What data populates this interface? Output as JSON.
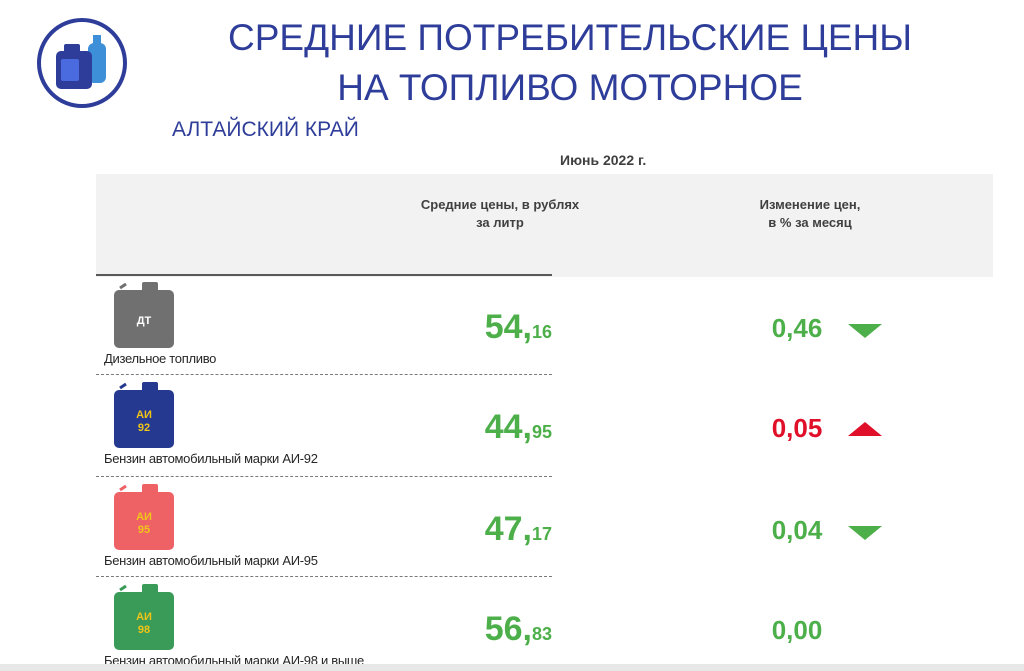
{
  "header": {
    "title_line1": "СРЕДНИЕ ПОТРЕБИТЕЛЬСКИЕ ЦЕНЫ",
    "title_line2": "НА ТОПЛИВО МОТОРНОЕ",
    "region": "АЛТАЙСКИЙ КРАЙ",
    "logo_icon": "fuel-canister-logo-icon"
  },
  "table": {
    "period": "Июнь 2022 г.",
    "col_price_l1": "Средние цены, в рублях",
    "col_price_l2": "за литр",
    "col_change_l1": "Изменение цен,",
    "col_change_l2": "в % за месяц",
    "rows": [
      {
        "can_label_1": "ДТ",
        "can_label_2": "",
        "name": "Дизельное топливо",
        "price_int": "54,",
        "price_dec": "16",
        "change": "0,46",
        "direction": "down",
        "change_color": "#4daf4a",
        "can_color": "#707070",
        "label_color": "#ffffff"
      },
      {
        "can_label_1": "АИ",
        "can_label_2": "92",
        "name": "Бензин автомобильный марки АИ-92",
        "price_int": "44,",
        "price_dec": "95",
        "change": "0,05",
        "direction": "up",
        "change_color": "#e0102a",
        "can_color": "#24398f",
        "label_color": "#f0c419"
      },
      {
        "can_label_1": "АИ",
        "can_label_2": "95",
        "name": "Бензин автомобильный марки АИ-95",
        "price_int": "47,",
        "price_dec": "17",
        "change": "0,04",
        "direction": "down",
        "change_color": "#4daf4a",
        "can_color": "#ee6266",
        "label_color": "#f0c419"
      },
      {
        "can_label_1": "АИ",
        "can_label_2": "98",
        "name": "Бензин автомобильный марки АИ-98 и выше",
        "price_int": "56,",
        "price_dec": "83",
        "change": "0,00",
        "direction": "none",
        "change_color": "#4daf4a",
        "can_color": "#3a9a57",
        "label_color": "#f0c419"
      }
    ]
  },
  "colors": {
    "brand_blue": "#2e3d99",
    "green": "#4daf4a",
    "red": "#e0102a"
  }
}
